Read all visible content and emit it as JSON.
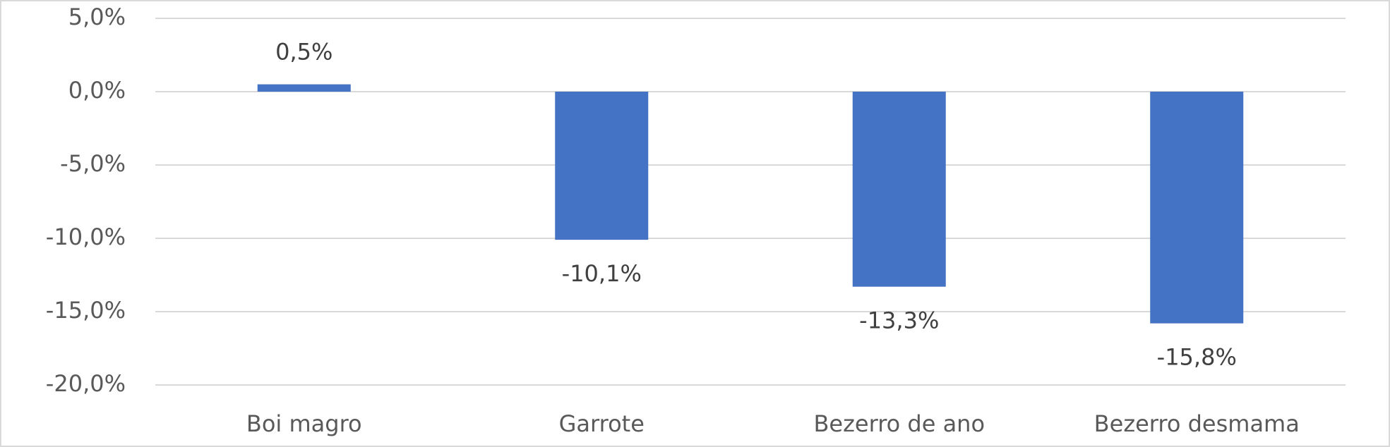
{
  "chart_data": {
    "type": "bar",
    "categories": [
      "Boi magro",
      "Garrote",
      "Bezerro de ano",
      "Bezerro desmama"
    ],
    "values": [
      0.5,
      -10.1,
      -13.3,
      -15.8
    ],
    "value_labels": [
      "0,5%",
      "-10,1%",
      "-13,3%",
      "-15,8%"
    ],
    "color": "#4472c4",
    "ylim": [
      -20,
      5
    ],
    "yticks": [
      {
        "value": -20,
        "label": "-20,0%"
      },
      {
        "value": -15,
        "label": "-15,0%"
      },
      {
        "value": -10,
        "label": "-10,0%"
      },
      {
        "value": -5,
        "label": "-5,0%"
      },
      {
        "value": 0,
        "label": "0,0%"
      },
      {
        "value": 5,
        "label": "5,0%"
      }
    ],
    "grid": true
  }
}
